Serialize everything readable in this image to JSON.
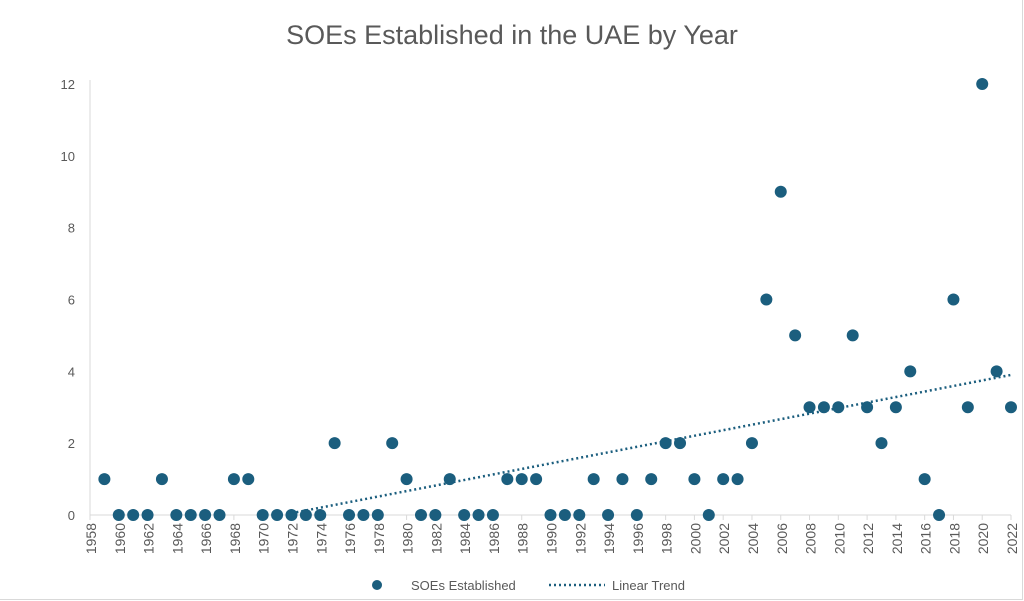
{
  "chart_data": {
    "type": "scatter",
    "title": "SOEs Established in the UAE by Year",
    "xlabel": "",
    "ylabel": "",
    "xlim": [
      1958,
      2022
    ],
    "ylim": [
      0,
      12
    ],
    "x_ticks": [
      "1958",
      "1960",
      "1962",
      "1964",
      "1966",
      "1968",
      "1970",
      "1972",
      "1974",
      "1976",
      "1978",
      "1980",
      "1982",
      "1984",
      "1986",
      "1988",
      "1990",
      "1992",
      "1994",
      "1996",
      "1998",
      "2000",
      "2002",
      "2004",
      "2006",
      "2008",
      "2010",
      "2012",
      "2014",
      "2016",
      "2018",
      "2020",
      "2022"
    ],
    "y_ticks": [
      "0",
      "2",
      "4",
      "6",
      "8",
      "10",
      "12"
    ],
    "grid": false,
    "legend_position": "bottom",
    "marker_color": "#1b5e7e",
    "series": [
      {
        "name": "SOEs Established",
        "x": [
          1959,
          1960,
          1961,
          1962,
          1963,
          1964,
          1965,
          1966,
          1967,
          1968,
          1969,
          1970,
          1971,
          1972,
          1973,
          1974,
          1975,
          1976,
          1977,
          1978,
          1979,
          1980,
          1981,
          1982,
          1983,
          1984,
          1985,
          1986,
          1987,
          1988,
          1989,
          1990,
          1991,
          1992,
          1993,
          1994,
          1995,
          1996,
          1997,
          1998,
          1999,
          2000,
          2001,
          2002,
          2003,
          2004,
          2005,
          2006,
          2007,
          2008,
          2009,
          2010,
          2011,
          2012,
          2013,
          2014,
          2015,
          2016,
          2017,
          2018,
          2019,
          2020,
          2021,
          2022
        ],
        "y": [
          1,
          0,
          0,
          0,
          1,
          0,
          0,
          0,
          0,
          1,
          1,
          0,
          0,
          0,
          0,
          0,
          2,
          0,
          0,
          0,
          2,
          1,
          0,
          0,
          1,
          0,
          0,
          0,
          1,
          1,
          1,
          0,
          0,
          0,
          1,
          0,
          1,
          0,
          1,
          2,
          2,
          1,
          0,
          1,
          1,
          2,
          6,
          9,
          5,
          3,
          3,
          3,
          5,
          3,
          2,
          3,
          4,
          1,
          0,
          6,
          3,
          12,
          4,
          3
        ]
      },
      {
        "name": "Linear Trend",
        "style": "dotted",
        "x": [
          1972,
          2022
        ],
        "y": [
          0.05,
          3.9
        ]
      }
    ]
  }
}
